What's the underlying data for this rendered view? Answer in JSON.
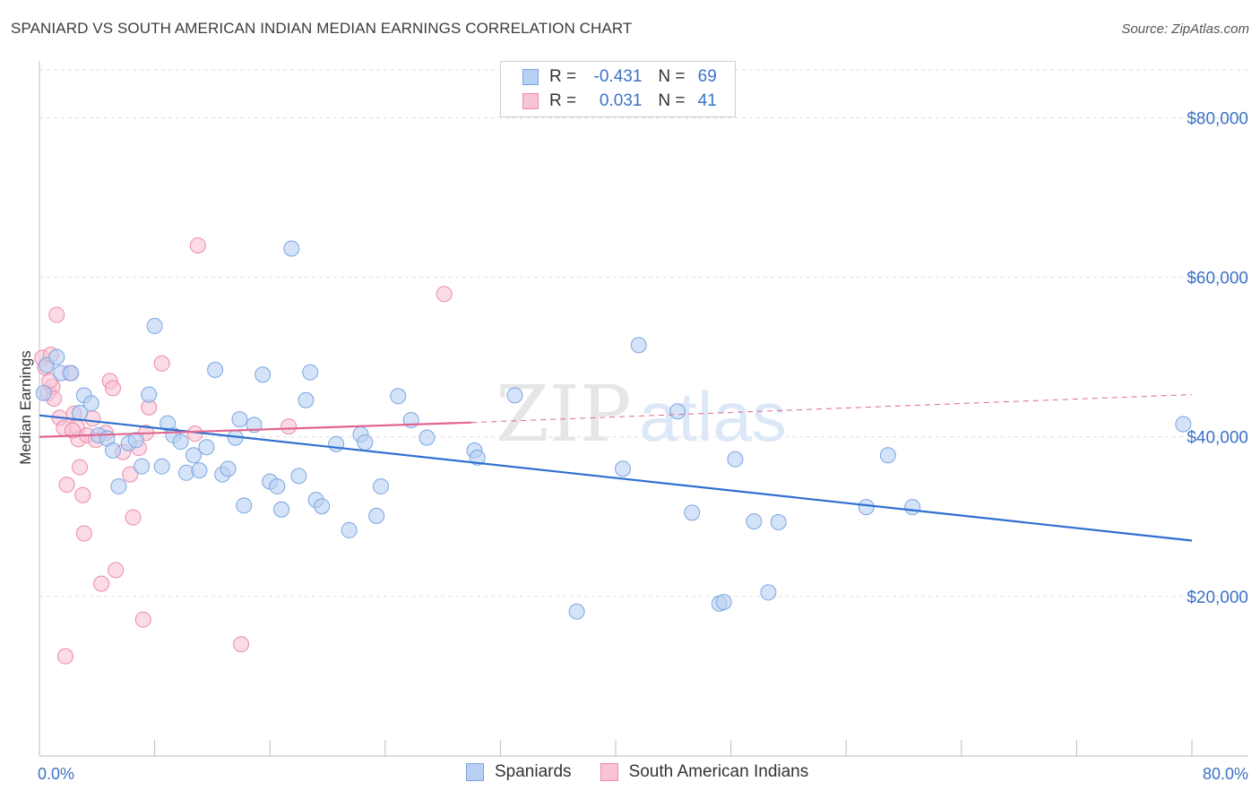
{
  "title": "SPANIARD VS SOUTH AMERICAN INDIAN MEDIAN EARNINGS CORRELATION CHART",
  "source": "Source: ZipAtlas.com",
  "watermark": {
    "zip": "ZIP",
    "atlas": "atlas"
  },
  "colors": {
    "blue_fill": "#b8d0f3",
    "blue_stroke": "#7ba6e0",
    "blue_line": "#2f6fd0",
    "pink_fill": "#f8c3d4",
    "pink_stroke": "#eb8aab",
    "pink_line": "#e0668e",
    "label_blue": "#3a72c8",
    "grid": "#dddddd"
  },
  "legend": {
    "r_label": "R =",
    "n_label": "N =",
    "rows": [
      {
        "r": "-0.431",
        "n": "69"
      },
      {
        "r": "0.031",
        "n": "41"
      }
    ]
  },
  "bottom_legend": [
    "Spaniards",
    "South American Indians"
  ],
  "chart_data": {
    "type": "scatter",
    "xlabel": "",
    "ylabel": "Median Earnings",
    "xlim": [
      0,
      80
    ],
    "ylim": [
      0,
      86000
    ],
    "x_tick_labels": [
      "0.0%",
      "80.0%"
    ],
    "y_tick_labels": [
      "$20,000",
      "$40,000",
      "$60,000",
      "$80,000"
    ],
    "y_ticks": [
      20000,
      40000,
      60000,
      80000
    ],
    "grid": "horizontal dashed",
    "legend_position": "top-center",
    "series": [
      {
        "name": "Spaniards",
        "r": -0.431,
        "n": 69,
        "trend": {
          "x": [
            0,
            80
          ],
          "y": [
            42700,
            27000
          ],
          "style": "solid"
        },
        "points": [
          [
            0.3,
            45500
          ],
          [
            0.5,
            49000
          ],
          [
            1.2,
            50000
          ],
          [
            1.5,
            48000
          ],
          [
            2.2,
            48000
          ],
          [
            2.8,
            43000
          ],
          [
            3.1,
            45200
          ],
          [
            3.6,
            44200
          ],
          [
            4.1,
            40200
          ],
          [
            4.7,
            39800
          ],
          [
            5.1,
            38300
          ],
          [
            5.5,
            33800
          ],
          [
            6.2,
            39200
          ],
          [
            6.7,
            39600
          ],
          [
            7.1,
            36300
          ],
          [
            7.6,
            45300
          ],
          [
            8.0,
            53900
          ],
          [
            8.5,
            36300
          ],
          [
            8.9,
            41700
          ],
          [
            9.3,
            40200
          ],
          [
            9.8,
            39400
          ],
          [
            10.2,
            35500
          ],
          [
            10.7,
            37700
          ],
          [
            11.1,
            35800
          ],
          [
            11.6,
            38700
          ],
          [
            12.2,
            48400
          ],
          [
            12.7,
            35300
          ],
          [
            13.1,
            36000
          ],
          [
            13.6,
            39900
          ],
          [
            13.9,
            42200
          ],
          [
            14.2,
            31400
          ],
          [
            14.9,
            41500
          ],
          [
            15.5,
            47800
          ],
          [
            16.0,
            34400
          ],
          [
            16.5,
            33800
          ],
          [
            16.8,
            30900
          ],
          [
            17.5,
            63600
          ],
          [
            18.0,
            35100
          ],
          [
            18.5,
            44600
          ],
          [
            18.8,
            48100
          ],
          [
            19.2,
            32100
          ],
          [
            19.6,
            31300
          ],
          [
            20.6,
            39100
          ],
          [
            21.5,
            28300
          ],
          [
            22.3,
            40300
          ],
          [
            22.6,
            39300
          ],
          [
            23.4,
            30100
          ],
          [
            23.7,
            33800
          ],
          [
            24.9,
            45100
          ],
          [
            25.8,
            42100
          ],
          [
            26.9,
            39900
          ],
          [
            30.2,
            38300
          ],
          [
            30.4,
            37400
          ],
          [
            33.0,
            45200
          ],
          [
            37.3,
            18100
          ],
          [
            40.5,
            36000
          ],
          [
            41.6,
            51500
          ],
          [
            44.3,
            43200
          ],
          [
            45.3,
            30500
          ],
          [
            47.2,
            19100
          ],
          [
            47.5,
            19300
          ],
          [
            48.3,
            37200
          ],
          [
            49.6,
            29400
          ],
          [
            50.6,
            20500
          ],
          [
            51.3,
            29300
          ],
          [
            57.4,
            31200
          ],
          [
            58.9,
            37700
          ],
          [
            60.6,
            31200
          ],
          [
            79.4,
            41600
          ]
        ]
      },
      {
        "name": "South American Indians",
        "r": 0.031,
        "n": 41,
        "trend": {
          "x": [
            0,
            30
          ],
          "y": [
            40000,
            41800
          ],
          "style": "solid",
          "extended_to": [
            80,
            45300
          ],
          "extended_style": "dashed"
        },
        "points": [
          [
            0.2,
            49900
          ],
          [
            0.4,
            48700
          ],
          [
            0.6,
            45500
          ],
          [
            0.9,
            46300
          ],
          [
            1.2,
            55300
          ],
          [
            1.4,
            42400
          ],
          [
            1.7,
            41100
          ],
          [
            1.9,
            34000
          ],
          [
            2.1,
            48000
          ],
          [
            2.4,
            42900
          ],
          [
            2.6,
            41200
          ],
          [
            2.7,
            39700
          ],
          [
            2.8,
            36200
          ],
          [
            3.0,
            32700
          ],
          [
            3.1,
            27900
          ],
          [
            3.3,
            40200
          ],
          [
            3.7,
            42300
          ],
          [
            4.3,
            21600
          ],
          [
            4.6,
            40500
          ],
          [
            4.9,
            47000
          ],
          [
            5.1,
            46100
          ],
          [
            5.3,
            23300
          ],
          [
            5.8,
            38100
          ],
          [
            6.3,
            35300
          ],
          [
            6.5,
            29900
          ],
          [
            7.2,
            17100
          ],
          [
            7.4,
            40500
          ],
          [
            7.6,
            43700
          ],
          [
            8.5,
            49200
          ],
          [
            10.8,
            40400
          ],
          [
            11.0,
            64000
          ],
          [
            14.0,
            14000
          ],
          [
            17.3,
            41300
          ],
          [
            28.1,
            57900
          ],
          [
            1.8,
            12500
          ],
          [
            0.8,
            50300
          ],
          [
            2.3,
            40800
          ],
          [
            1.0,
            44800
          ],
          [
            3.9,
            39600
          ],
          [
            6.9,
            38600
          ],
          [
            0.7,
            47000
          ]
        ]
      }
    ]
  }
}
